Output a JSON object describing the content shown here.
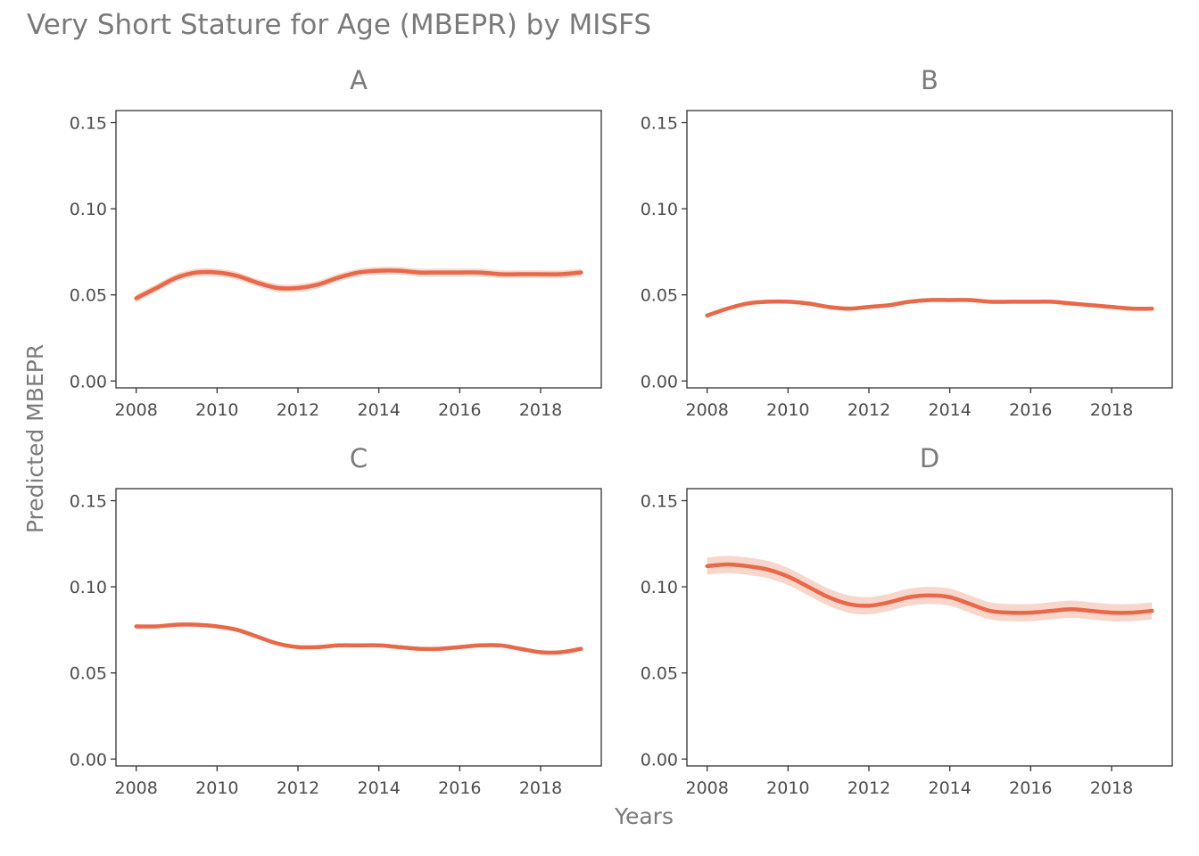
{
  "chart_data": {
    "type": "line",
    "title": "Very Short Stature for Age (MBEPR) by MISFS",
    "xlabel": "Years",
    "ylabel": "Predicted MBEPR",
    "xlim": [
      2007.5,
      2019.5
    ],
    "ylim": [
      -0.004,
      0.157
    ],
    "x_ticks": [
      2008,
      2010,
      2012,
      2014,
      2016,
      2018
    ],
    "y_ticks": [
      0.0,
      0.05,
      0.1,
      0.15
    ],
    "y_tick_labels": [
      "0.00",
      "0.05",
      "0.10",
      "0.15"
    ],
    "grid": false,
    "line_color": "#E8694A",
    "band_color": "#F6C8BB",
    "panels": [
      {
        "label": "A",
        "x": [
          2008,
          2008.5,
          2009,
          2009.5,
          2010,
          2010.5,
          2011,
          2011.5,
          2012,
          2012.5,
          2013,
          2013.5,
          2014,
          2014.5,
          2015,
          2015.5,
          2016,
          2016.5,
          2017,
          2017.5,
          2018,
          2018.5,
          2019
        ],
        "y": [
          0.048,
          0.054,
          0.06,
          0.063,
          0.063,
          0.061,
          0.057,
          0.054,
          0.054,
          0.056,
          0.06,
          0.063,
          0.064,
          0.064,
          0.063,
          0.063,
          0.063,
          0.063,
          0.062,
          0.062,
          0.062,
          0.062,
          0.063
        ],
        "ci_halfwidth": 0.0022
      },
      {
        "label": "B",
        "x": [
          2008,
          2008.5,
          2009,
          2009.5,
          2010,
          2010.5,
          2011,
          2011.5,
          2012,
          2012.5,
          2013,
          2013.5,
          2014,
          2014.5,
          2015,
          2015.5,
          2016,
          2016.5,
          2017,
          2017.5,
          2018,
          2018.5,
          2019
        ],
        "y": [
          0.038,
          0.042,
          0.045,
          0.046,
          0.046,
          0.045,
          0.043,
          0.042,
          0.043,
          0.044,
          0.046,
          0.047,
          0.047,
          0.047,
          0.046,
          0.046,
          0.046,
          0.046,
          0.045,
          0.044,
          0.043,
          0.042,
          0.042
        ],
        "ci_halfwidth": 0.0012
      },
      {
        "label": "C",
        "x": [
          2008,
          2008.5,
          2009,
          2009.5,
          2010,
          2010.5,
          2011,
          2011.5,
          2012,
          2012.5,
          2013,
          2013.5,
          2014,
          2014.5,
          2015,
          2015.5,
          2016,
          2016.5,
          2017,
          2017.5,
          2018,
          2018.5,
          2019
        ],
        "y": [
          0.077,
          0.077,
          0.078,
          0.078,
          0.077,
          0.075,
          0.071,
          0.067,
          0.065,
          0.065,
          0.066,
          0.066,
          0.066,
          0.065,
          0.064,
          0.064,
          0.065,
          0.066,
          0.066,
          0.064,
          0.062,
          0.062,
          0.064
        ],
        "ci_halfwidth": 0.0012
      },
      {
        "label": "D",
        "x": [
          2008,
          2008.5,
          2009,
          2009.5,
          2010,
          2010.5,
          2011,
          2011.5,
          2012,
          2012.5,
          2013,
          2013.5,
          2014,
          2014.5,
          2015,
          2015.5,
          2016,
          2016.5,
          2017,
          2017.5,
          2018,
          2018.5,
          2019
        ],
        "y": [
          0.112,
          0.113,
          0.112,
          0.11,
          0.106,
          0.1,
          0.094,
          0.09,
          0.089,
          0.091,
          0.094,
          0.095,
          0.094,
          0.09,
          0.086,
          0.085,
          0.085,
          0.086,
          0.087,
          0.086,
          0.085,
          0.085,
          0.086
        ],
        "ci_halfwidth": 0.005
      }
    ]
  }
}
